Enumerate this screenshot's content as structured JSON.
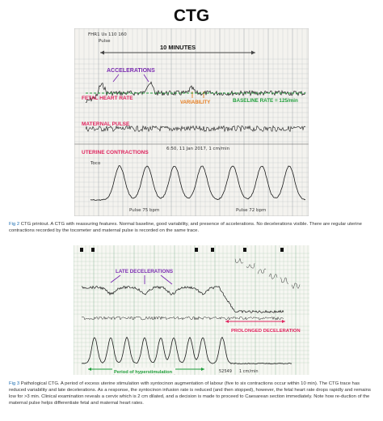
{
  "page_title": "CTG",
  "fig2": {
    "caption_label": "Fig 2",
    "caption_text": "CTG printout. A CTG with reassuring features. Normal baseline, good variability, and presence of accelerations. No decelerations visible. There are regular uterine contractions recorded by the tocometer and maternal pulse is recorded on the same trace.",
    "labels": {
      "ten_minutes": "10 MINUTES",
      "accelerations": "ACCELERATIONS",
      "fetal_heart_rate": "FETAL HEART RATE",
      "variability": "VARIABILITY",
      "baseline_rate": "BASELINE RATE = 125/min",
      "maternal_pulse": "MATERNAL PULSE",
      "uterine_contractions": "UTERINE CONTRACTIONS",
      "printout_header": "FHR1 Us  110  160",
      "pulse": "Pulse",
      "date_stamp": "6:50, 11 Jan 2017, 1 cm/min",
      "toco": "Toco",
      "pulse_75": "Pulse 75 bpm",
      "pulse_72": "Pulse 72 bpm"
    },
    "colors": {
      "accelerations": "#7a2bb0",
      "fhr": "#e0245e",
      "variability": "#e67e22",
      "baseline": "#1f9e3a",
      "uc": "#e0245e",
      "arrow": "#444444"
    }
  },
  "fig3": {
    "caption_label": "Fig 3",
    "caption_text": "Pathological CTG. A period of excess uterine stimulation with syntocinon augmentation of labour (five to six contractions occur within 10 min). The CTG trace has reduced variability and late decelerations. As a response, the syntocinon infusion rate is reduced (and then stopped), however, the fetal heart rate drops rapidly and remains low for >3 min. Clinical examination reveals a cervix which is 2 cm dilated, and a decision is made to proceed to Caesarean section immediately. Note how re-duction of the maternal pulse helps differentiate fetal and maternal heart rates.",
    "labels": {
      "late_decelerations": "LATE DECELERATIONS",
      "prolonged_deceleration": "PROLONGED DECELERATION",
      "hyperstimulation": "Period of hyperstimulation",
      "footer_number": "52549",
      "footer_speed": "1 cm/min"
    },
    "colors": {
      "late_dec": "#7a2bb0",
      "prolonged": "#e0245e",
      "hyper": "#1f9e3a"
    }
  }
}
